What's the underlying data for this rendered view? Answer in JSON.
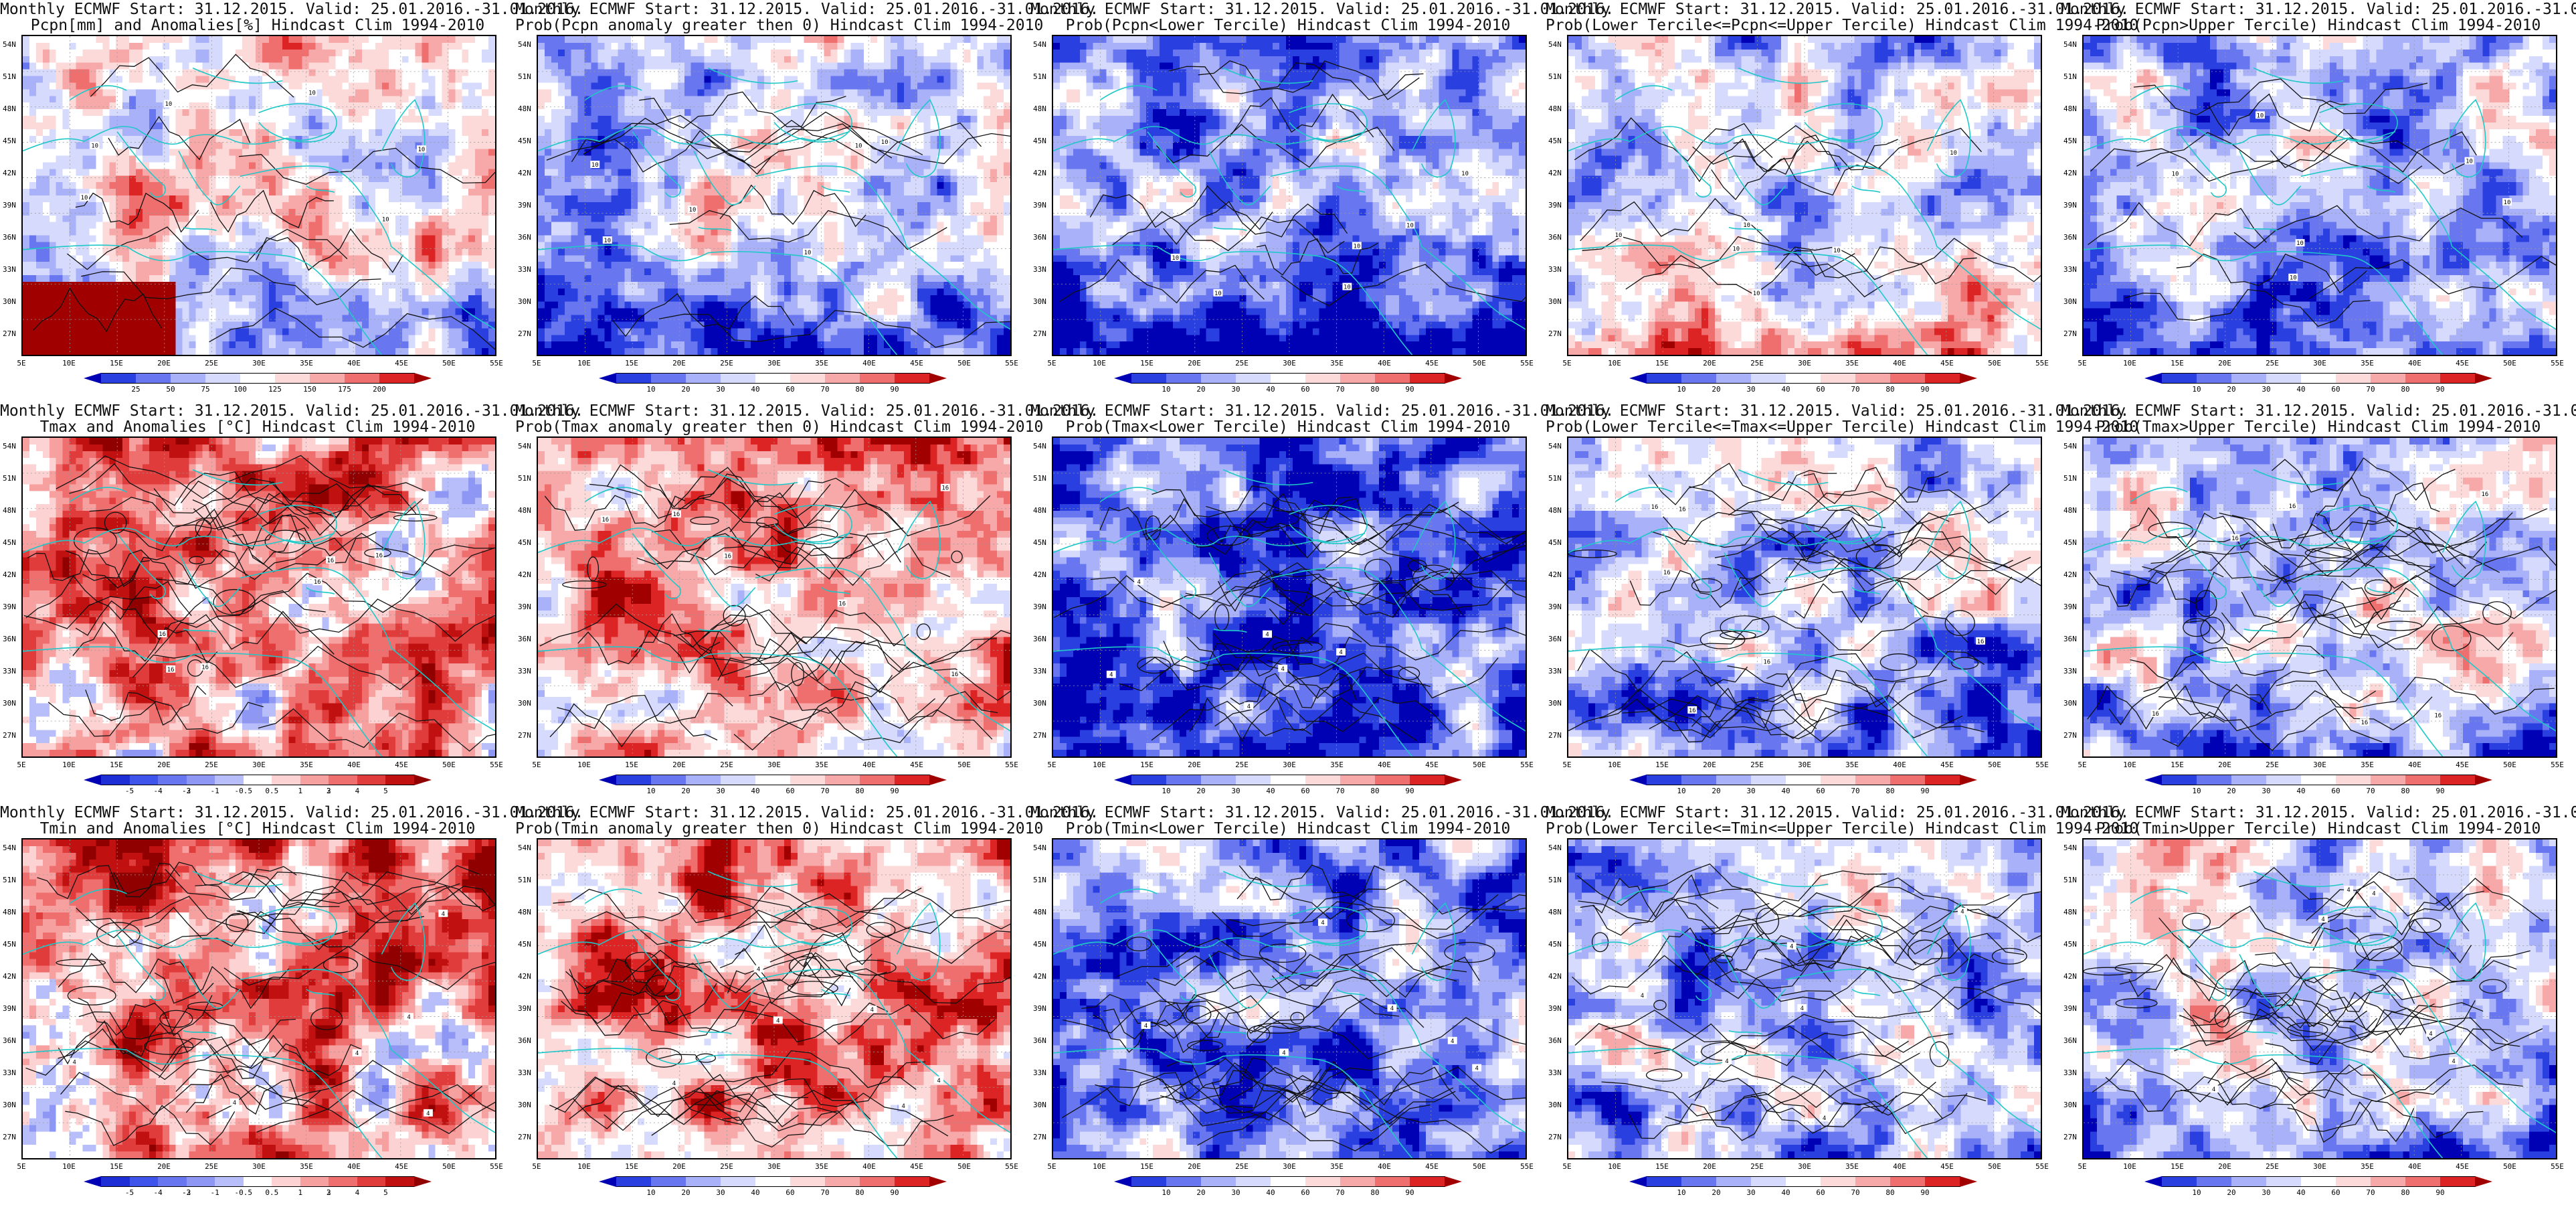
{
  "title_line1": "Monthly ECMWF Start: 31.12.2015. Valid: 25.01.2016.-31.01.2016.",
  "lat_labels": [
    "54N",
    "51N",
    "48N",
    "45N",
    "42N",
    "39N",
    "36N",
    "33N",
    "30N",
    "27N"
  ],
  "lon_labels": [
    "5E",
    "10E",
    "15E",
    "20E",
    "25E",
    "30E",
    "35E",
    "40E",
    "45E",
    "50E",
    "55E"
  ],
  "colorbars": {
    "precip_anom": {
      "ticks": [
        "25",
        "50",
        "75",
        "100",
        "125",
        "150",
        "175",
        "200"
      ],
      "colors": [
        "#0000b4",
        "#2a3fe0",
        "#6877f0",
        "#a9b1f8",
        "#d6dbfd",
        "#ffffff",
        "#fddada",
        "#f7a8a8",
        "#ef6e6e",
        "#dd2424",
        "#a00000"
      ]
    },
    "prob": {
      "ticks": [
        "10",
        "20",
        "30",
        "40",
        "60",
        "70",
        "80",
        "90"
      ],
      "colors": [
        "#0000b4",
        "#2a3fe0",
        "#6877f0",
        "#a9b1f8",
        "#d6dbfd",
        "#ffffff",
        "#fddada",
        "#f7a8a8",
        "#ef6e6e",
        "#dd2424",
        "#a00000"
      ]
    },
    "temp_anom": {
      "ticks": [
        "-5",
        "-4",
        "-3",
        "-2",
        "-1",
        "-0.5",
        "0.5",
        "1",
        "2",
        "3",
        "4",
        "5"
      ],
      "colors": [
        "#0000b4",
        "#1d2ed6",
        "#3f54ea",
        "#6877f0",
        "#8e98f4",
        "#b8befa",
        "#ffffff",
        "#fdd2d2",
        "#f7a0a0",
        "#ef6e6e",
        "#e03c3c",
        "#c01010",
        "#900000"
      ]
    }
  },
  "panels": [
    {
      "title": "Pcpn[mm] and Anomalies[%] Hindcast Clim 1994-2010",
      "cbar": "precip_anom",
      "seed": 11,
      "bias": 0.05,
      "south": -0.55,
      "sw_red": 1,
      "contours": "light",
      "tag": "10"
    },
    {
      "title": "Prob(Pcpn anomaly greater then 0) Hindcast Clim 1994-2010",
      "cbar": "prob",
      "seed": 23,
      "bias": -0.15,
      "south": -0.6,
      "sw_red": 0,
      "contours": "light",
      "tag": "10"
    },
    {
      "title": "Prob(Pcpn<Lower Tercile) Hindcast Clim 1994-2010",
      "cbar": "prob",
      "seed": 37,
      "bias": -0.35,
      "south": -0.75,
      "sw_red": 0,
      "contours": "light",
      "tag": "10"
    },
    {
      "title": "Prob(Lower Tercile<=Pcpn<=Upper Tercile) Hindcast Clim 1994-2010",
      "cbar": "prob",
      "seed": 41,
      "bias": -0.25,
      "south": 0.55,
      "sw_red": 0,
      "contours": "light",
      "tag": "10"
    },
    {
      "title": "Prob(Pcpn>Upper Tercile) Hindcast Clim 1994-2010",
      "cbar": "prob",
      "seed": 53,
      "bias": -0.2,
      "south": -0.4,
      "sw_red": 0,
      "contours": "light",
      "tag": "10"
    },
    {
      "title": "Tmax and Anomalies [°C] Hindcast Clim 1994-2010",
      "cbar": "temp_anom",
      "seed": 61,
      "bias": 0.35,
      "south": -0.15,
      "sw_red": 0,
      "contours": "dense",
      "tag": "16"
    },
    {
      "title": "Prob(Tmax anomaly greater then 0) Hindcast Clim 1994-2010",
      "cbar": "prob",
      "seed": 71,
      "bias": 0.35,
      "south": -0.2,
      "sw_red": 0,
      "contours": "dense",
      "tag": "16"
    },
    {
      "title": "Prob(Tmax<Lower Tercile) Hindcast Clim 1994-2010",
      "cbar": "prob",
      "seed": 79,
      "bias": -0.6,
      "south": -0.1,
      "sw_red": 0,
      "contours": "dense",
      "tag": "4"
    },
    {
      "title": "Prob(Lower Tercile<=Tmax<=Upper Tercile) Hindcast Clim 1994-2010",
      "cbar": "prob",
      "seed": 83,
      "bias": -0.2,
      "south": -0.2,
      "sw_red": 0,
      "contours": "dense",
      "tag": "16"
    },
    {
      "title": "Prob(Tmax>Upper Tercile) Hindcast Clim 1994-2010",
      "cbar": "prob",
      "seed": 97,
      "bias": -0.05,
      "south": -0.45,
      "sw_red": 0,
      "contours": "dense",
      "tag": "16"
    },
    {
      "title": "Tmin and Anomalies [°C] Hindcast Clim 1994-2010",
      "cbar": "temp_anom",
      "seed": 101,
      "bias": 0.45,
      "south": -0.15,
      "sw_red": 0,
      "contours": "dense",
      "tag": "4"
    },
    {
      "title": "Prob(Tmin anomaly greater then 0) Hindcast Clim 1994-2010",
      "cbar": "prob",
      "seed": 113,
      "bias": 0.4,
      "south": -0.15,
      "sw_red": 0,
      "contours": "dense",
      "tag": "4"
    },
    {
      "title": "Prob(Tmin<Lower Tercile) Hindcast Clim 1994-2010",
      "cbar": "prob",
      "seed": 127,
      "bias": -0.45,
      "south": -0.15,
      "sw_red": 0,
      "contours": "dense",
      "tag": "4"
    },
    {
      "title": "Prob(Lower Tercile<=Tmin<=Upper Tercile) Hindcast Clim 1994-2010",
      "cbar": "prob",
      "seed": 131,
      "bias": -0.25,
      "south": -0.1,
      "sw_red": 0,
      "contours": "dense",
      "tag": "4"
    },
    {
      "title": "Prob(Tmin>Upper Tercile) Hindcast Clim 1994-2010",
      "cbar": "prob",
      "seed": 139,
      "bias": -0.15,
      "south": -0.45,
      "sw_red": 0,
      "contours": "dense",
      "tag": "4"
    }
  ]
}
